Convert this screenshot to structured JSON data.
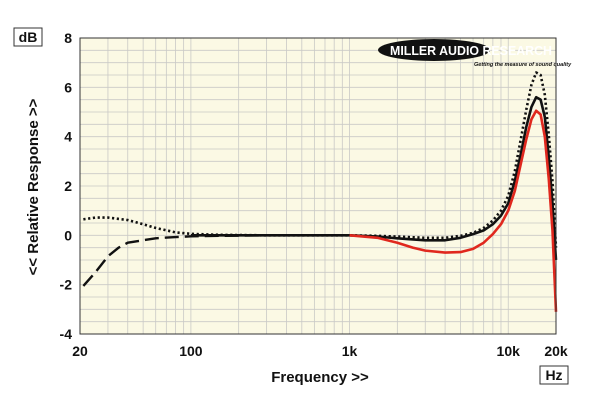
{
  "chart_data": {
    "type": "line",
    "xlabel": "Frequency >>",
    "ylabel": "<< Relative Response >>",
    "x_unit": "Hz",
    "y_unit": "dB",
    "x_scale": "log",
    "xlim": [
      20,
      20000
    ],
    "ylim": [
      -4,
      8
    ],
    "x_ticks": [
      {
        "value": 20,
        "label": "20"
      },
      {
        "value": 100,
        "label": "100"
      },
      {
        "value": 1000,
        "label": "1k"
      },
      {
        "value": 10000,
        "label": "10k"
      },
      {
        "value": 20000,
        "label": "20k"
      }
    ],
    "y_ticks": [
      {
        "value": -4,
        "label": "-4"
      },
      {
        "value": -2,
        "label": "-2"
      },
      {
        "value": 0,
        "label": "0"
      },
      {
        "value": 2,
        "label": "2"
      },
      {
        "value": 4,
        "label": "4"
      },
      {
        "value": 6,
        "label": "6"
      },
      {
        "value": 8,
        "label": "8"
      }
    ],
    "grid": true,
    "series": [
      {
        "style": "dotted",
        "color": "#111111",
        "points": [
          [
            21,
            0.65
          ],
          [
            25,
            0.72
          ],
          [
            30,
            0.72
          ],
          [
            40,
            0.62
          ],
          [
            50,
            0.45
          ],
          [
            60,
            0.3
          ],
          [
            80,
            0.12
          ],
          [
            100,
            0.06
          ],
          [
            150,
            0.02
          ],
          [
            300,
            0.0
          ],
          [
            1000,
            0.0
          ],
          [
            1500,
            -0.02
          ],
          [
            2000,
            -0.05
          ],
          [
            3000,
            -0.1
          ],
          [
            4000,
            -0.1
          ],
          [
            5000,
            -0.02
          ],
          [
            6000,
            0.1
          ],
          [
            7000,
            0.3
          ],
          [
            8000,
            0.6
          ],
          [
            9000,
            1.0
          ],
          [
            10000,
            1.6
          ],
          [
            11000,
            2.6
          ],
          [
            12000,
            3.9
          ],
          [
            13000,
            5.1
          ],
          [
            14000,
            6.1
          ],
          [
            15000,
            6.6
          ],
          [
            16000,
            6.5
          ],
          [
            17000,
            5.7
          ],
          [
            18000,
            4.1
          ],
          [
            19000,
            2.2
          ],
          [
            20000,
            -0.5
          ]
        ]
      },
      {
        "style": "dashed",
        "color": "#111111",
        "points": [
          [
            21,
            -2.05
          ],
          [
            25,
            -1.5
          ],
          [
            30,
            -0.85
          ],
          [
            35,
            -0.5
          ],
          [
            40,
            -0.3
          ],
          [
            50,
            -0.2
          ],
          [
            60,
            -0.12
          ],
          [
            80,
            -0.07
          ],
          [
            100,
            -0.04
          ],
          [
            150,
            -0.02
          ],
          [
            300,
            0.0
          ],
          [
            1000,
            0.0
          ]
        ]
      },
      {
        "style": "solid",
        "color": "#111111",
        "points": [
          [
            100,
            0.0
          ],
          [
            300,
            0.0
          ],
          [
            1000,
            0.0
          ],
          [
            1500,
            -0.05
          ],
          [
            2000,
            -0.12
          ],
          [
            3000,
            -0.2
          ],
          [
            4000,
            -0.2
          ],
          [
            5000,
            -0.1
          ],
          [
            6000,
            0.05
          ],
          [
            7000,
            0.2
          ],
          [
            8000,
            0.45
          ],
          [
            9000,
            0.8
          ],
          [
            10000,
            1.3
          ],
          [
            11000,
            2.2
          ],
          [
            12000,
            3.3
          ],
          [
            13000,
            4.4
          ],
          [
            14000,
            5.2
          ],
          [
            15000,
            5.6
          ],
          [
            16000,
            5.5
          ],
          [
            17000,
            4.8
          ],
          [
            18000,
            3.2
          ],
          [
            19000,
            1.3
          ],
          [
            20000,
            -1.0
          ]
        ]
      },
      {
        "style": "solid",
        "color": "#e0281e",
        "points": [
          [
            1000,
            0.0
          ],
          [
            1500,
            -0.1
          ],
          [
            2000,
            -0.3
          ],
          [
            2500,
            -0.5
          ],
          [
            3000,
            -0.62
          ],
          [
            4000,
            -0.7
          ],
          [
            5000,
            -0.68
          ],
          [
            6000,
            -0.55
          ],
          [
            7000,
            -0.3
          ],
          [
            8000,
            0.05
          ],
          [
            9000,
            0.45
          ],
          [
            10000,
            1.0
          ],
          [
            11000,
            1.8
          ],
          [
            12000,
            2.9
          ],
          [
            13000,
            3.9
          ],
          [
            14000,
            4.7
          ],
          [
            15000,
            5.05
          ],
          [
            16000,
            4.9
          ],
          [
            17000,
            4.0
          ],
          [
            18000,
            2.3
          ],
          [
            19000,
            0.2
          ],
          [
            20000,
            -3.1
          ]
        ]
      }
    ]
  },
  "logo": {
    "name": "MILLER AUDIO RESEARCH",
    "tagline": "Getting the measure of sound quality"
  },
  "colors": {
    "plot_background": "#fbf9e4",
    "grid": "#c9c9c6",
    "frame": "#333333"
  }
}
